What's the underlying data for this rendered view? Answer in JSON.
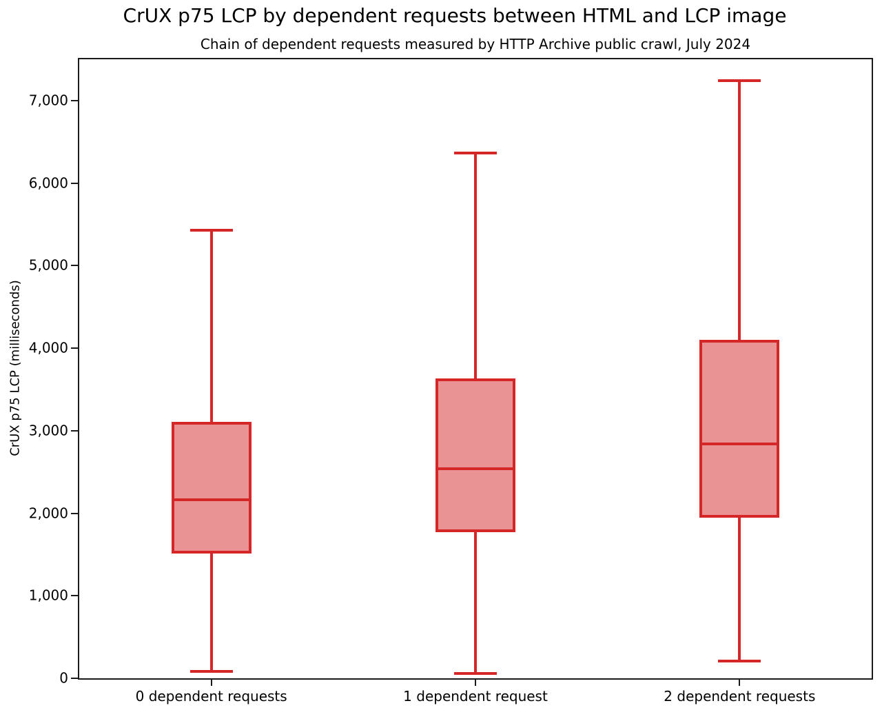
{
  "chart_data": {
    "type": "boxplot",
    "title": "CrUX p75 LCP by dependent requests between HTML and LCP image",
    "subtitle": "Chain of dependent requests measured by HTTP Archive public crawl, July 2024",
    "xlabel": "",
    "ylabel": "CrUX p75 LCP (milliseconds)",
    "ylim": [
      0,
      7500
    ],
    "yticks": [
      0,
      1000,
      2000,
      3000,
      4000,
      5000,
      6000,
      7000
    ],
    "ytick_labels": [
      "0",
      "1,000",
      "2,000",
      "3,000",
      "4,000",
      "5,000",
      "6,000",
      "7,000"
    ],
    "grid": false,
    "legend": null,
    "categories": [
      "0 dependent requests",
      "1 dependent request",
      "2 dependent requests"
    ],
    "series": [
      {
        "label": "0 dependent requests",
        "whisker_low": 85,
        "q1": 1530,
        "median": 2160,
        "q3": 3090,
        "whisker_high": 5430
      },
      {
        "label": "1 dependent request",
        "whisker_low": 60,
        "q1": 1790,
        "median": 2540,
        "q3": 3620,
        "whisker_high": 6360
      },
      {
        "label": "2 dependent requests",
        "whisker_low": 210,
        "q1": 1960,
        "median": 2840,
        "q3": 4080,
        "whisker_high": 7240
      }
    ],
    "colors": {
      "box_line": "#d62728",
      "box_fill": "#ea9394",
      "axis": "#1a1a1a",
      "text": "#000000"
    }
  }
}
